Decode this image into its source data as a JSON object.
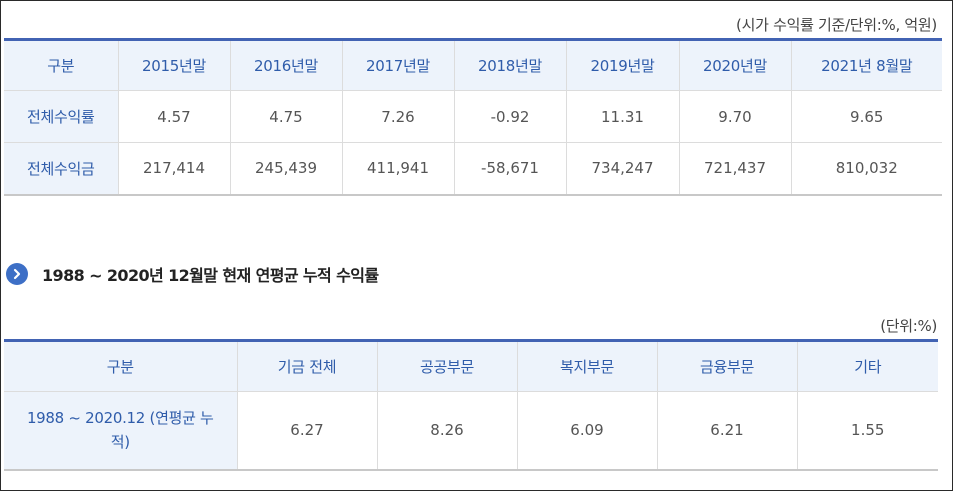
{
  "table1": {
    "unit_note": "(시가 수익률 기준/단위:%, 억원)",
    "headers": [
      "구분",
      "2015년말",
      "2016년말",
      "2017년말",
      "2018년말",
      "2019년말",
      "2020년말",
      "2021년 8월말"
    ],
    "rows": [
      {
        "label": "전체수익률",
        "values": [
          "4.57",
          "4.75",
          "7.26",
          "-0.92",
          "11.31",
          "9.70",
          "9.65"
        ]
      },
      {
        "label": "전체수익금",
        "values": [
          "217,414",
          "245,439",
          "411,941",
          "-58,671",
          "734,247",
          "721,437",
          "810,032"
        ]
      }
    ]
  },
  "section": {
    "title": "1988 ~ 2020년 12월말 현재 연평균 누적 수익률",
    "icon": "chevron-right-icon"
  },
  "table2": {
    "unit_note": "(단위:%)",
    "headers": [
      "구분",
      "기금 전체",
      "공공부문",
      "복지부문",
      "금융부문",
      "기타"
    ],
    "rows": [
      {
        "label": "1988 ~ 2020.12 (연평균 누적)",
        "values": [
          "6.27",
          "8.26",
          "6.09",
          "6.21",
          "1.55"
        ]
      }
    ]
  },
  "colors": {
    "accent": "#4263b3",
    "header_bg": "#edf3fb",
    "header_text": "#2f5caa",
    "icon_bg": "#3d6fc6"
  }
}
